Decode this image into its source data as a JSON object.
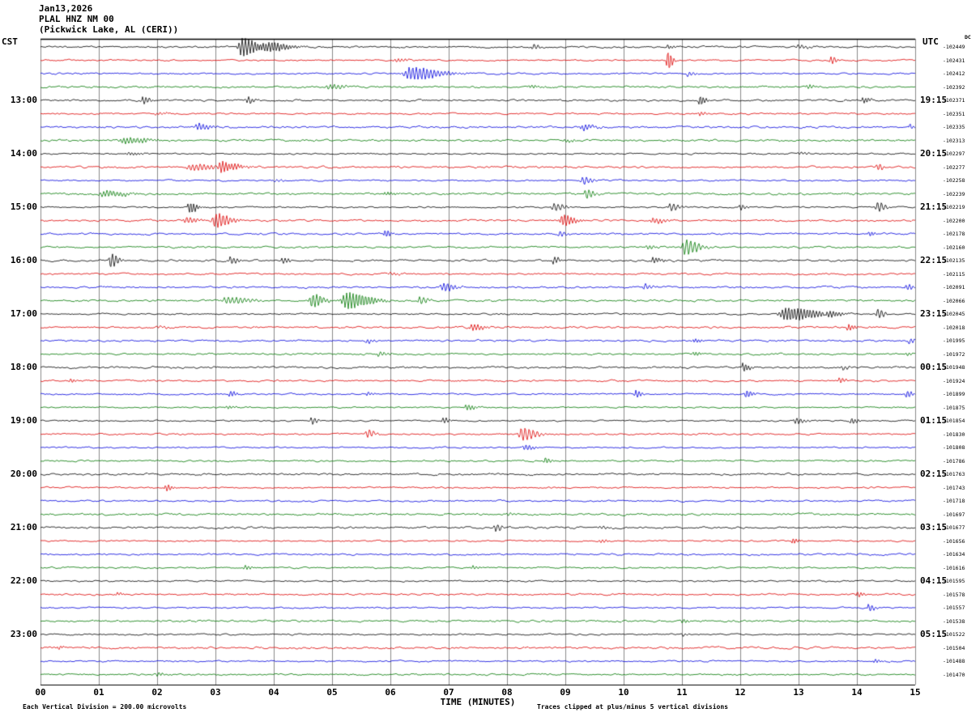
{
  "header": {
    "date": "Jan13,2026",
    "station": "PLAL HNZ NM 00",
    "location": "(Pickwick Lake, AL (CERI))"
  },
  "axis": {
    "left_tz": "CST",
    "right_tz": "UTC",
    "dc_header": "DC",
    "x_label": "TIME (MINUTES)",
    "x_ticks": [
      "00",
      "01",
      "02",
      "03",
      "04",
      "05",
      "06",
      "07",
      "08",
      "09",
      "10",
      "11",
      "12",
      "13",
      "14",
      "15"
    ],
    "footer_left": "Each Vertical Division =  200.00 microvolts",
    "footer_right": "Traces clipped at plus/minus 5 vertical divisions"
  },
  "chart_data": {
    "type": "line",
    "subtype": "helicorder-seismogram",
    "station": "PLAL HNZ NM 00",
    "location": "Pickwick Lake, AL (CERI)",
    "date": "Jan13,2026",
    "minutes_per_row": 15,
    "rows": 48,
    "x_range_minutes": [
      0,
      15
    ],
    "vertical_division_microvolts": 200.0,
    "clip_divisions": 5,
    "color_cycle": [
      "#000000",
      "#dd0000",
      "#0000dd",
      "#007700"
    ],
    "left_hour_labels": [
      "13:00",
      "14:00",
      "15:00",
      "16:00",
      "17:00",
      "18:00",
      "19:00",
      "20:00",
      "21:00",
      "22:00",
      "23:00"
    ],
    "right_hour_labels": [
      "19:15",
      "20:15",
      "21:15",
      "22:15",
      "23:15",
      "00:15",
      "01:15",
      "02:15",
      "03:15",
      "04:15",
      "05:15"
    ],
    "hour_label_row_indices": [
      4,
      8,
      12,
      16,
      20,
      24,
      28,
      32,
      36,
      40,
      44
    ],
    "trace_dc_offsets": [
      "-102449",
      "-102431",
      "-102412",
      "-102392",
      "-102371",
      "-102351",
      "-102335",
      "-102313",
      "-102297",
      "-102277",
      "-102258",
      "-102239",
      "-102219",
      "-102200",
      "-102178",
      "-102160",
      "-102135",
      "-102115",
      "-102091",
      "-102066",
      "-102045",
      "-102018",
      "-101995",
      "-101972",
      "-101948",
      "-101924",
      "-101899",
      "-101875",
      "-101854",
      "-101830",
      "-101808",
      "-101786",
      "-101763",
      "-101743",
      "-101718",
      "-101697",
      "-101677",
      "-101656",
      "-101634",
      "-101616",
      "-101595",
      "-101578",
      "-101557",
      "-101538",
      "-101522",
      "-101504",
      "-101488",
      "-101470"
    ],
    "trace_events": [
      [
        [
          3.45,
          11,
          0.12
        ],
        [
          3.8,
          7,
          0.18
        ],
        [
          8.45,
          3.5,
          0.05
        ],
        [
          10.75,
          2.5,
          0.05
        ],
        [
          13.0,
          2.5,
          0.08
        ]
      ],
      [
        [
          6.1,
          2,
          0.08
        ],
        [
          10.75,
          13,
          0.035
        ],
        [
          13.55,
          5,
          0.045
        ]
      ],
      [
        [
          6.35,
          8,
          0.22
        ],
        [
          11.1,
          2.5,
          0.06
        ]
      ],
      [
        [
          4.95,
          3,
          0.12
        ],
        [
          8.4,
          2,
          0.08
        ],
        [
          13.15,
          2.5,
          0.05
        ]
      ],
      [
        [
          1.75,
          5,
          0.05
        ],
        [
          3.55,
          4,
          0.05
        ],
        [
          11.3,
          6,
          0.045
        ],
        [
          14.1,
          3.5,
          0.06
        ]
      ],
      [
        [
          2.0,
          1.5,
          0.08
        ],
        [
          11.3,
          2.5,
          0.045
        ]
      ],
      [
        [
          2.7,
          4,
          0.1
        ],
        [
          9.3,
          3.5,
          0.09
        ],
        [
          14.9,
          2.5,
          0.04
        ]
      ],
      [
        [
          1.45,
          3.5,
          0.18
        ],
        [
          9.0,
          1.5,
          0.08
        ]
      ],
      [
        [
          1.5,
          1.5,
          0.1
        ],
        [
          13.0,
          1.5,
          0.08
        ]
      ],
      [
        [
          2.6,
          4,
          0.18
        ],
        [
          3.1,
          6,
          0.13
        ],
        [
          14.35,
          4.5,
          0.045
        ]
      ],
      [
        [
          4.0,
          1.5,
          0.08
        ],
        [
          9.3,
          5,
          0.07
        ]
      ],
      [
        [
          1.1,
          3.5,
          0.18
        ],
        [
          5.9,
          1.8,
          0.08
        ],
        [
          9.35,
          6,
          0.07
        ]
      ],
      [
        [
          2.55,
          7,
          0.06
        ],
        [
          8.8,
          4.5,
          0.09
        ],
        [
          10.8,
          4.5,
          0.07
        ],
        [
          12.0,
          3.5,
          0.05
        ],
        [
          14.35,
          6,
          0.06
        ]
      ],
      [
        [
          2.5,
          3.5,
          0.09
        ],
        [
          3.0,
          9,
          0.11
        ],
        [
          8.95,
          7,
          0.09
        ],
        [
          10.5,
          3.5,
          0.09
        ]
      ],
      [
        [
          5.9,
          4.5,
          0.045
        ],
        [
          8.9,
          3.5,
          0.05
        ],
        [
          14.2,
          2.5,
          0.045
        ]
      ],
      [
        [
          10.4,
          2.5,
          0.07
        ],
        [
          11.05,
          9,
          0.11
        ]
      ],
      [
        [
          1.2,
          9,
          0.06
        ],
        [
          3.25,
          4.5,
          0.06
        ],
        [
          4.15,
          3.5,
          0.05
        ],
        [
          8.8,
          4.5,
          0.045
        ],
        [
          10.5,
          3.5,
          0.07
        ]
      ],
      [
        [
          6.0,
          1.5,
          0.08
        ]
      ],
      [
        [
          6.9,
          5,
          0.09
        ],
        [
          10.35,
          3.5,
          0.06
        ],
        [
          14.85,
          3.5,
          0.05
        ]
      ],
      [
        [
          3.2,
          4,
          0.18
        ],
        [
          4.65,
          8,
          0.09
        ],
        [
          5.25,
          10,
          0.18
        ],
        [
          6.5,
          4,
          0.07
        ]
      ],
      [
        [
          12.8,
          8,
          0.25
        ],
        [
          13.5,
          6,
          0.1
        ],
        [
          14.35,
          6,
          0.05
        ]
      ],
      [
        [
          2.0,
          1.5,
          0.08
        ],
        [
          7.4,
          4,
          0.09
        ],
        [
          13.85,
          4,
          0.05
        ]
      ],
      [
        [
          5.6,
          2.5,
          0.05
        ],
        [
          11.2,
          2.5,
          0.05
        ],
        [
          14.9,
          3.5,
          0.04
        ]
      ],
      [
        [
          5.8,
          2.5,
          0.07
        ],
        [
          11.2,
          2.5,
          0.05
        ],
        [
          14.85,
          2.5,
          0.04
        ]
      ],
      [
        [
          12.05,
          5,
          0.05
        ],
        [
          13.75,
          2.5,
          0.05
        ]
      ],
      [
        [
          0.5,
          2.5,
          0.04
        ],
        [
          13.7,
          3.5,
          0.045
        ]
      ],
      [
        [
          3.25,
          3.5,
          0.05
        ],
        [
          5.6,
          2.5,
          0.05
        ],
        [
          10.2,
          4.5,
          0.045
        ],
        [
          12.1,
          5,
          0.05
        ],
        [
          14.85,
          4.5,
          0.045
        ]
      ],
      [
        [
          3.2,
          1.8,
          0.07
        ],
        [
          7.3,
          3.5,
          0.07
        ]
      ],
      [
        [
          4.65,
          4.5,
          0.045
        ],
        [
          6.9,
          3.5,
          0.045
        ],
        [
          12.95,
          3.5,
          0.07
        ],
        [
          13.9,
          3.5,
          0.05
        ]
      ],
      [
        [
          5.6,
          5,
          0.06
        ],
        [
          8.25,
          8,
          0.11
        ]
      ],
      [
        [
          8.3,
          3.5,
          0.07
        ]
      ],
      [
        [
          8.65,
          3.5,
          0.05
        ]
      ],
      [],
      [
        [
          2.15,
          4.5,
          0.045
        ]
      ],
      [],
      [
        [
          8.0,
          2.5,
          0.05
        ]
      ],
      [
        [
          7.8,
          5,
          0.045
        ],
        [
          9.6,
          1.8,
          0.07
        ]
      ],
      [
        [
          9.6,
          2.5,
          0.05
        ],
        [
          12.9,
          3.5,
          0.045
        ]
      ],
      [],
      [
        [
          3.5,
          2.5,
          0.05
        ],
        [
          7.4,
          2.5,
          0.05
        ]
      ],
      [],
      [
        [
          1.3,
          1.8,
          0.05
        ],
        [
          14.0,
          3.5,
          0.045
        ]
      ],
      [
        [
          14.2,
          4.5,
          0.045
        ]
      ],
      [
        [
          11.0,
          1.8,
          0.06
        ]
      ],
      [
        [
          11.0,
          1.8,
          0.05
        ]
      ],
      [
        [
          0.3,
          1.8,
          0.04
        ]
      ],
      [
        [
          14.3,
          2.5,
          0.045
        ]
      ],
      [
        [
          2.0,
          2.5,
          0.05
        ]
      ]
    ]
  }
}
